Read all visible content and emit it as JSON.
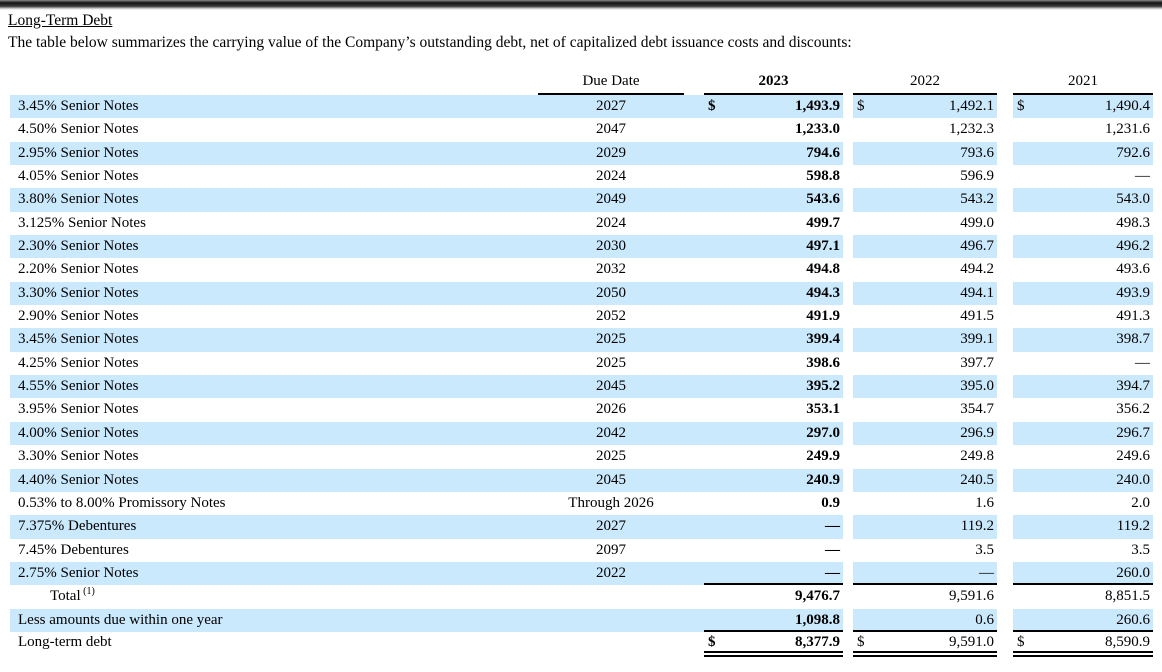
{
  "page": {
    "title": "Long-Term Debt",
    "intro": "The table below summarizes the carrying value of the Company’s outstanding debt, net of capitalized debt issuance costs and discounts:"
  },
  "table": {
    "highlight_color": "#cbe9fc",
    "currency": "$",
    "dash": "—",
    "header": {
      "due": "Due Date",
      "y2023": "2023",
      "y2022": "2022",
      "y2021": "2021"
    },
    "rows": [
      {
        "label": "3.45% Senior Notes",
        "due": "2027",
        "a2023": "1,493.9",
        "a2022": "1,492.1",
        "a2021": "1,490.4",
        "shade": true,
        "dollar": true
      },
      {
        "label": "4.50% Senior Notes",
        "due": "2047",
        "a2023": "1,233.0",
        "a2022": "1,232.3",
        "a2021": "1,231.6"
      },
      {
        "label": "2.95% Senior Notes",
        "due": "2029",
        "a2023": "794.6",
        "a2022": "793.6",
        "a2021": "792.6",
        "shade": true
      },
      {
        "label": "4.05% Senior Notes",
        "due": "2024",
        "a2023": "598.8",
        "a2022": "596.9",
        "a2021": "—"
      },
      {
        "label": "3.80% Senior Notes",
        "due": "2049",
        "a2023": "543.6",
        "a2022": "543.2",
        "a2021": "543.0",
        "shade": true
      },
      {
        "label": "3.125% Senior Notes",
        "due": "2024",
        "a2023": "499.7",
        "a2022": "499.0",
        "a2021": "498.3"
      },
      {
        "label": "2.30% Senior Notes",
        "due": "2030",
        "a2023": "497.1",
        "a2022": "496.7",
        "a2021": "496.2",
        "shade": true
      },
      {
        "label": "2.20% Senior Notes",
        "due": "2032",
        "a2023": "494.8",
        "a2022": "494.2",
        "a2021": "493.6"
      },
      {
        "label": "3.30% Senior Notes",
        "due": "2050",
        "a2023": "494.3",
        "a2022": "494.1",
        "a2021": "493.9",
        "shade": true
      },
      {
        "label": "2.90% Senior Notes",
        "due": "2052",
        "a2023": "491.9",
        "a2022": "491.5",
        "a2021": "491.3"
      },
      {
        "label": "3.45% Senior Notes",
        "due": "2025",
        "a2023": "399.4",
        "a2022": "399.1",
        "a2021": "398.7",
        "shade": true
      },
      {
        "label": "4.25% Senior Notes",
        "due": "2025",
        "a2023": "398.6",
        "a2022": "397.7",
        "a2021": "—"
      },
      {
        "label": "4.55% Senior Notes",
        "due": "2045",
        "a2023": "395.2",
        "a2022": "395.0",
        "a2021": "394.7",
        "shade": true
      },
      {
        "label": "3.95% Senior Notes",
        "due": "2026",
        "a2023": "353.1",
        "a2022": "354.7",
        "a2021": "356.2"
      },
      {
        "label": "4.00% Senior Notes",
        "due": "2042",
        "a2023": "297.0",
        "a2022": "296.9",
        "a2021": "296.7",
        "shade": true
      },
      {
        "label": "3.30% Senior Notes",
        "due": "2025",
        "a2023": "249.9",
        "a2022": "249.8",
        "a2021": "249.6"
      },
      {
        "label": "4.40% Senior Notes",
        "due": "2045",
        "a2023": "240.9",
        "a2022": "240.5",
        "a2021": "240.0",
        "shade": true
      },
      {
        "label": "0.53% to 8.00% Promissory Notes",
        "due": "Through 2026",
        "a2023": "0.9",
        "a2022": "1.6",
        "a2021": "2.0"
      },
      {
        "label": "7.375% Debentures",
        "due": "2027",
        "a2023": "—",
        "a2022": "119.2",
        "a2021": "119.2",
        "shade": true
      },
      {
        "label": "7.45% Debentures",
        "due": "2097",
        "a2023": "—",
        "a2022": "3.5",
        "a2021": "3.5"
      },
      {
        "label": "2.75% Senior Notes",
        "due": "2022",
        "a2023": "—",
        "a2022": "—",
        "a2021": "260.0",
        "shade": true,
        "rule_below": true
      },
      {
        "label": "Total",
        "sup": "(1)",
        "indent": true,
        "due": "",
        "a2023": "9,476.7",
        "a2022": "9,591.6",
        "a2021": "8,851.5"
      },
      {
        "label": "Less amounts due within one year",
        "due": "",
        "a2023": "1,098.8",
        "a2022": "0.6",
        "a2021": "260.6",
        "shade": true,
        "rule_below": true
      },
      {
        "label": "Long-term debt",
        "due": "",
        "a2023": "8,377.9",
        "a2022": "9,591.0",
        "a2021": "8,590.9",
        "dollar": true,
        "double_rule_below": true
      }
    ]
  }
}
